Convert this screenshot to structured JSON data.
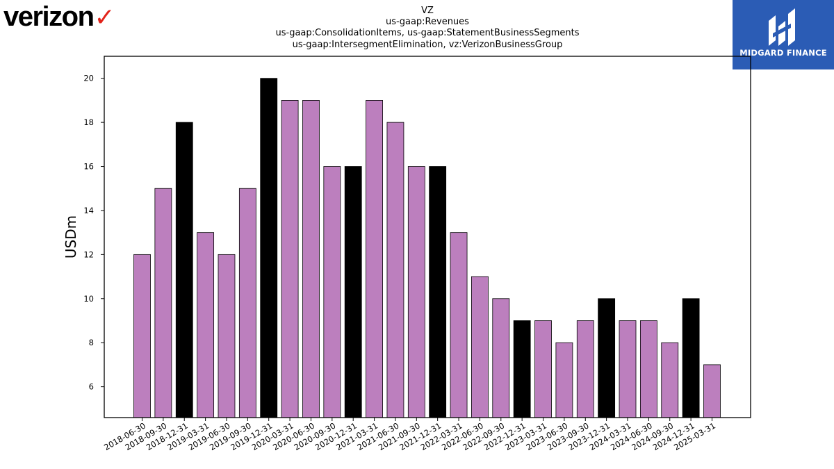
{
  "logos": {
    "left_text": "verizon",
    "left_mark": "red-checkmark-icon",
    "right_text": "MIDGARD FINANCE",
    "right_mark": "midgard-logo-icon"
  },
  "colors": {
    "bar_default": "#bc7fbe",
    "bar_highlight": "#000000",
    "bar_edge": "#000000",
    "logo_bg": "#2b5cb5",
    "verizon_check": "#e2231a"
  },
  "chart_data": {
    "type": "bar",
    "title_lines": [
      "VZ",
      "us-gaap:Revenues",
      "us-gaap:ConsolidationItems, us-gaap:StatementBusinessSegments",
      "us-gaap:IntersegmentElimination, vz:VerizonBusinessGroup"
    ],
    "ylabel": "USDm",
    "xlabel": "",
    "ylim": [
      4.6,
      21.0
    ],
    "yticks": [
      6,
      8,
      10,
      12,
      14,
      16,
      18,
      20
    ],
    "grid": false,
    "categories": [
      "2018-06-30",
      "2018-09-30",
      "2018-12-31",
      "2019-03-31",
      "2019-06-30",
      "2019-09-30",
      "2019-12-31",
      "2020-03-31",
      "2020-06-30",
      "2020-09-30",
      "2020-12-31",
      "2021-03-31",
      "2021-06-30",
      "2021-09-30",
      "2021-12-31",
      "2022-03-31",
      "2022-06-30",
      "2022-09-30",
      "2022-12-31",
      "2023-03-31",
      "2023-06-30",
      "2023-09-30",
      "2023-12-31",
      "2024-03-31",
      "2024-06-30",
      "2024-09-30",
      "2024-12-31",
      "2025-03-31"
    ],
    "values": [
      12,
      15,
      18,
      13,
      12,
      15,
      20,
      19,
      19,
      16,
      16,
      19,
      18,
      16,
      16,
      13,
      11,
      10,
      9,
      9,
      8,
      9,
      10,
      9,
      9,
      8,
      10,
      7
    ],
    "highlight_categories": [
      "2018-12-31",
      "2019-12-31",
      "2020-12-31",
      "2021-12-31",
      "2022-12-31",
      "2023-12-31",
      "2024-12-31"
    ]
  }
}
